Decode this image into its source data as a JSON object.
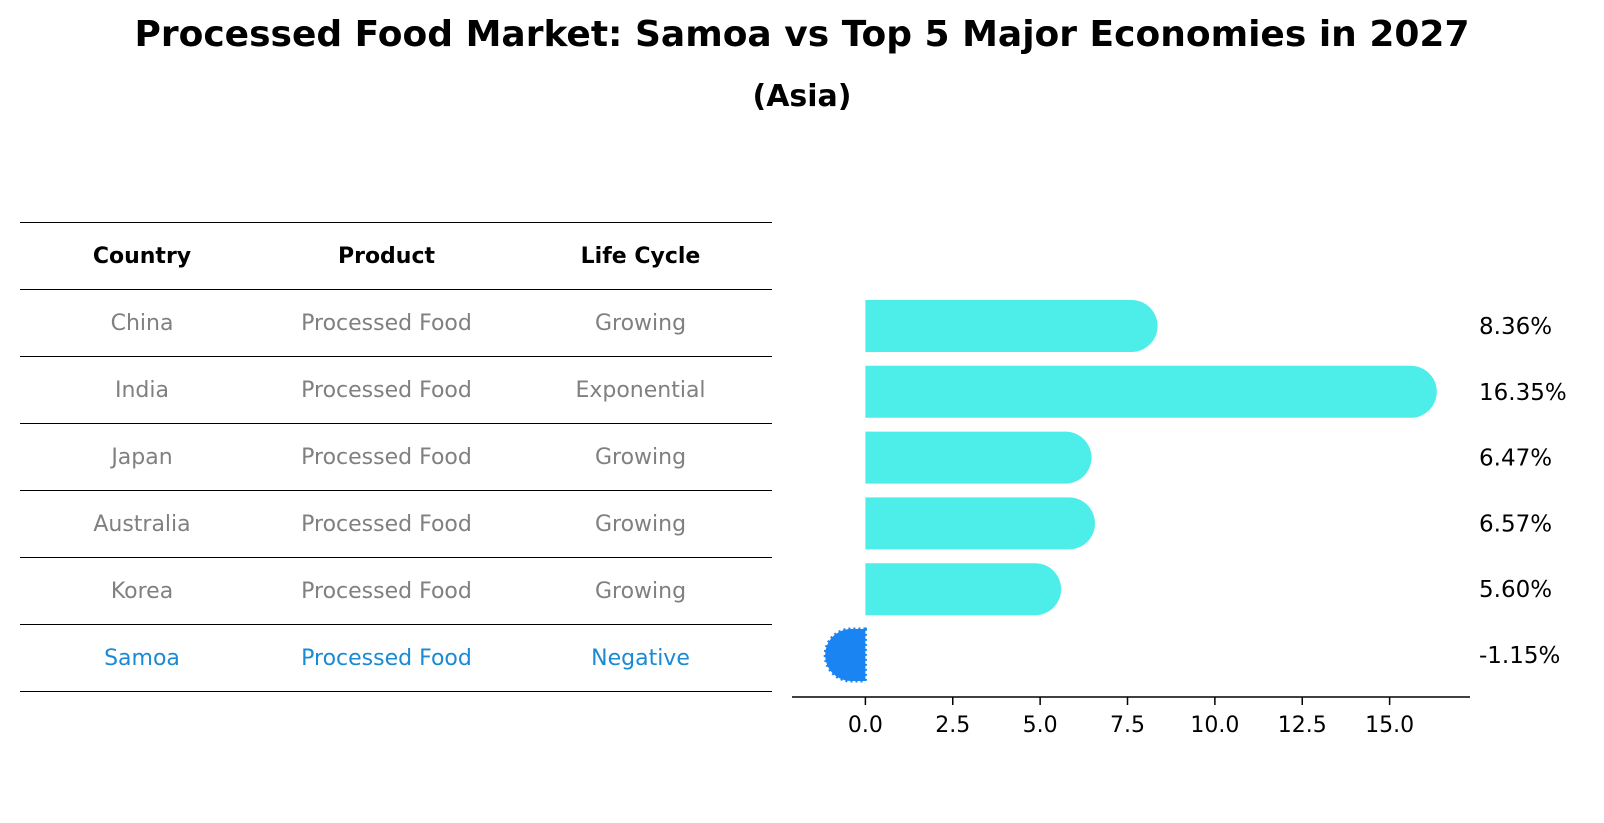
{
  "title": "Processed Food Market: Samoa vs Top 5 Major Economies in 2027",
  "subtitle": "(Asia)",
  "table": {
    "headers": [
      "Country",
      "Product",
      "Life Cycle"
    ],
    "rows": [
      [
        "China",
        "Processed Food",
        "Growing"
      ],
      [
        "India",
        "Processed Food",
        "Exponential"
      ],
      [
        "Japan",
        "Processed Food",
        "Growing"
      ],
      [
        "Australia",
        "Processed Food",
        "Growing"
      ],
      [
        "Korea",
        "Processed Food",
        "Growing"
      ],
      [
        "Samoa",
        "Processed Food",
        "Negative"
      ]
    ],
    "highlight_row": "Samoa",
    "highlight_color": "#1a8ad4",
    "text_color": "#808080"
  },
  "chart_data": {
    "type": "bar",
    "orientation": "horizontal",
    "categories": [
      "China",
      "India",
      "Japan",
      "Australia",
      "Korea",
      "Samoa"
    ],
    "values": [
      8.36,
      16.35,
      6.47,
      6.57,
      5.6,
      -1.15
    ],
    "value_labels": [
      "8.36%",
      "16.35%",
      "6.47%",
      "6.57%",
      "5.60%",
      "-1.15%"
    ],
    "xlim": [
      -2.1,
      17.3
    ],
    "xticks": [
      0.0,
      2.5,
      5.0,
      7.5,
      10.0,
      12.5,
      15.0
    ],
    "xtick_labels": [
      "0.0",
      "2.5",
      "5.0",
      "7.5",
      "10.0",
      "12.5",
      "15.0"
    ],
    "positive_color": "#4deeea",
    "negative_color": "#1a85f2",
    "xlabel": "",
    "ylabel": ""
  }
}
